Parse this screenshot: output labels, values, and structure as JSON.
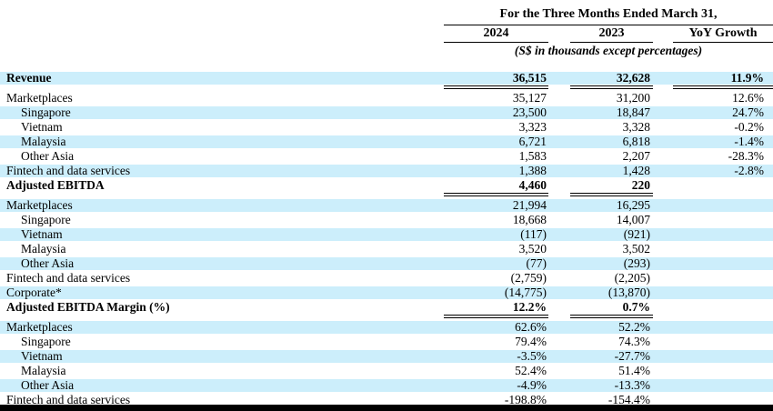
{
  "header": {
    "period_title": "For the Three Months Ended March 31,",
    "columns": [
      "2024",
      "2023",
      "YoY Growth"
    ],
    "units_note": "(S$ in thousands except percentages)"
  },
  "colors": {
    "row_shade": "#cceefb",
    "text": "#000000",
    "bottom_bar": "#000000"
  },
  "table": {
    "rows": [
      {
        "label": "Revenue",
        "bold": true,
        "rule": true,
        "v2024": "36,515",
        "v2023": "32,628",
        "yoy": "11.9%"
      },
      {
        "label": "Marketplaces",
        "v2024": "35,127",
        "v2023": "31,200",
        "yoy": "12.6%"
      },
      {
        "label": "Singapore",
        "indent": true,
        "v2024": "23,500",
        "v2023": "18,847",
        "yoy": "24.7%"
      },
      {
        "label": "Vietnam",
        "indent": true,
        "v2024": "3,323",
        "v2023": "3,328",
        "yoy": "-0.2%"
      },
      {
        "label": "Malaysia",
        "indent": true,
        "v2024": "6,721",
        "v2023": "6,818",
        "yoy": "-1.4%"
      },
      {
        "label": "Other Asia",
        "indent": true,
        "v2024": "1,583",
        "v2023": "2,207",
        "yoy": "-28.3%"
      },
      {
        "label": "Fintech and data services",
        "v2024": "1,388",
        "v2023": "1,428",
        "yoy": "-2.8%"
      },
      {
        "label": "Adjusted EBITDA",
        "bold": true,
        "rule": true,
        "v2024": "4,460",
        "v2023": "220"
      },
      {
        "label": "Marketplaces",
        "v2024": "21,994",
        "v2023": "16,295"
      },
      {
        "label": "Singapore",
        "indent": true,
        "v2024": "18,668",
        "v2023": "14,007"
      },
      {
        "label": "Vietnam",
        "indent": true,
        "v2024": "(117)",
        "v2023": "(921)"
      },
      {
        "label": "Malaysia",
        "indent": true,
        "v2024": "3,520",
        "v2023": "3,502"
      },
      {
        "label": "Other Asia",
        "indent": true,
        "v2024": "(77)",
        "v2023": "(293)"
      },
      {
        "label": "Fintech and data services",
        "v2024": "(2,759)",
        "v2023": "(2,205)"
      },
      {
        "label": "Corporate*",
        "v2024": "(14,775)",
        "v2023": "(13,870)"
      },
      {
        "label": "Adjusted EBITDA Margin (%)",
        "bold": true,
        "rule": true,
        "v2024": "12.2%",
        "v2023": "0.7%"
      },
      {
        "label": "Marketplaces",
        "v2024": "62.6%",
        "v2023": "52.2%"
      },
      {
        "label": "Singapore",
        "indent": true,
        "v2024": "79.4%",
        "v2023": "74.3%"
      },
      {
        "label": "Vietnam",
        "indent": true,
        "v2024": "-3.5%",
        "v2023": "-27.7%"
      },
      {
        "label": "Malaysia",
        "indent": true,
        "v2024": "52.4%",
        "v2023": "51.4%"
      },
      {
        "label": "Other Asia",
        "indent": true,
        "v2024": "-4.9%",
        "v2023": "-13.3%"
      },
      {
        "label": "Fintech and data services",
        "v2024": "-198.8%",
        "v2023": "-154.4%"
      }
    ]
  }
}
